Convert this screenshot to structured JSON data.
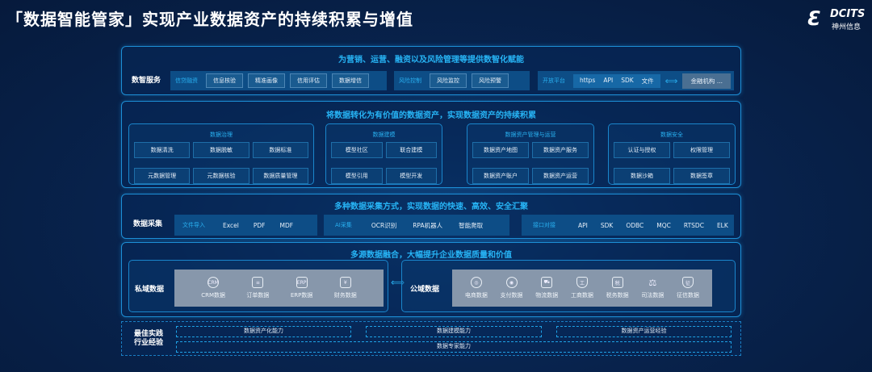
{
  "title": "「数据智能管家」实现产业数据资产的持续积累与增值",
  "logo": {
    "text": "DCITS",
    "subtext": "神州信息"
  },
  "service": {
    "heading": "为营销、运营、融资以及风险管理等提供数智化赋能",
    "label": "数智服务",
    "groups": [
      {
        "label": "信贷融资",
        "items": [
          "信息核验",
          "精准画像",
          "信用评估",
          "数据增信"
        ]
      },
      {
        "label": "风险控制",
        "items": [
          "风险监控",
          "风险预警"
        ]
      }
    ],
    "platform": {
      "label": "开放平台",
      "items": [
        "https",
        "API",
        "SDK",
        "文件"
      ],
      "target": "金融机构 ..."
    }
  },
  "assets": {
    "heading": "将数据转化为有价值的数据资产，实现数据资产的持续积累",
    "boxes": [
      {
        "title": "数据治理",
        "items": [
          "数据清洗",
          "数据脱敏",
          "数据标准",
          "元数据管理",
          "元数据核验",
          "数据质量管理"
        ]
      },
      {
        "title": "数据建模",
        "items": [
          "模型社区",
          "联合建模",
          "模型引用",
          "模型开发"
        ]
      },
      {
        "title": "数据资产管理与运营",
        "items": [
          "数据资产地图",
          "数据资产服务",
          "数据资产账户",
          "数据资产运营"
        ]
      },
      {
        "title": "数据安全",
        "items": [
          "认证与授权",
          "权限管理",
          "数据沙箱",
          "数据签章"
        ]
      }
    ]
  },
  "collect": {
    "heading": "多种数据采集方式，实现数据的快速、高效、安全汇聚",
    "label": "数据采集",
    "groups": [
      {
        "label": "文件导入",
        "items": [
          "Excel",
          "PDF",
          "MDF"
        ]
      },
      {
        "label": "AI采集",
        "items": [
          "OCR识别",
          "RPA机器人",
          "智能爬取"
        ]
      },
      {
        "label": "接口对接",
        "items": [
          "API",
          "SDK",
          "ODBC",
          "MQC",
          "RTSDC",
          "ELK"
        ]
      }
    ]
  },
  "fusion": {
    "heading": "多源数据融合，大幅提升企业数据质量和价值",
    "private": {
      "label": "私域数据",
      "items": [
        {
          "icon": "CRM",
          "label": "CRM数据"
        },
        {
          "icon": "≡",
          "label": "订单数据"
        },
        {
          "icon": "ERP",
          "label": "ERP数据"
        },
        {
          "icon": "¥",
          "label": "财务数据"
        }
      ]
    },
    "public": {
      "label": "公域数据",
      "items": [
        {
          "icon": "◎",
          "label": "电商数据"
        },
        {
          "icon": "◉",
          "label": "支付数据"
        },
        {
          "icon": "⛟",
          "label": "物流数据"
        },
        {
          "icon": "工",
          "label": "工商数据"
        },
        {
          "icon": "税",
          "label": "税务数据"
        },
        {
          "icon": "⚖",
          "label": "司法数据"
        },
        {
          "icon": "征",
          "label": "征信数据"
        }
      ]
    }
  },
  "practice": {
    "label1": "最佳实践",
    "label2": "行业经验",
    "items": [
      "数据资产化能力",
      "数据建模能力",
      "数据资产运营经验",
      "数据专家能力"
    ]
  }
}
